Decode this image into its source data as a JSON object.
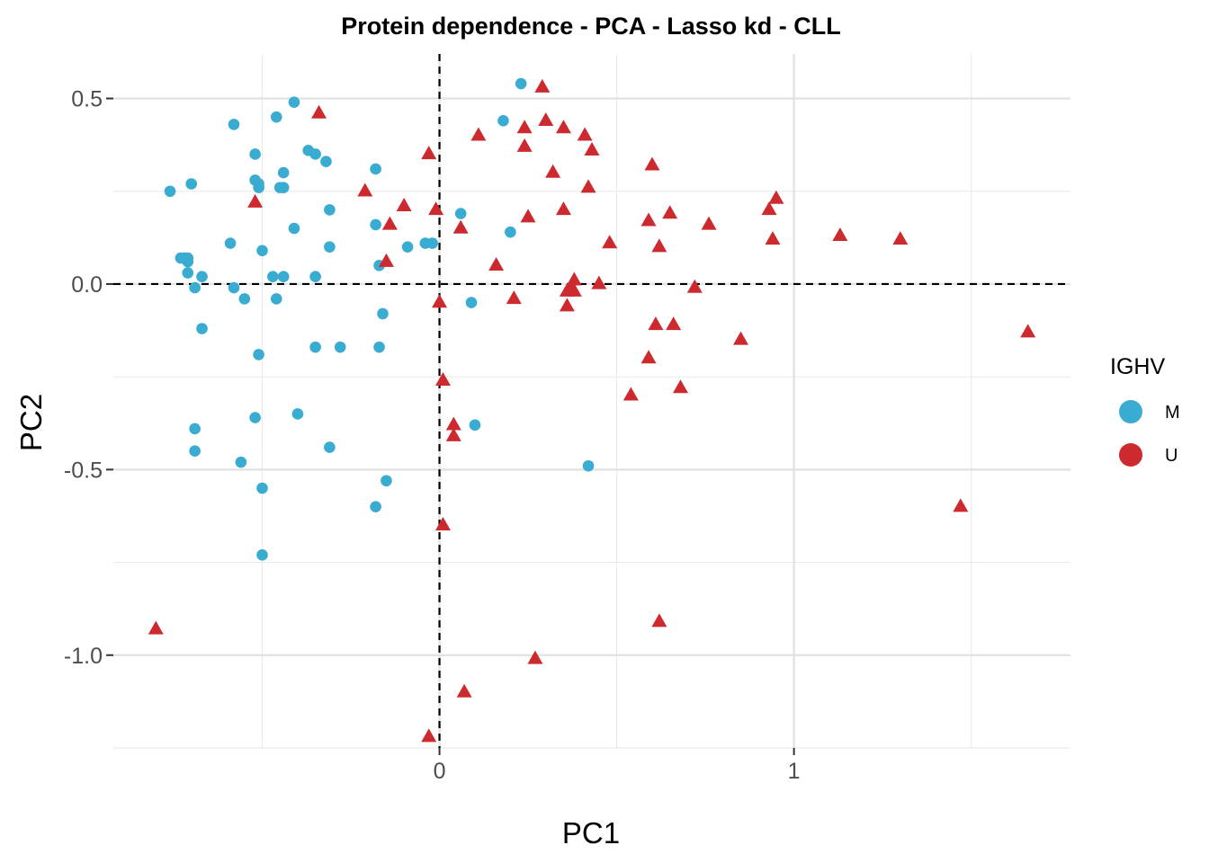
{
  "chart_data": {
    "type": "scatter",
    "title": "Protein dependence - PCA - Lasso kd - CLL",
    "xlabel": "PC1",
    "ylabel": "PC2",
    "xlim": [
      -0.92,
      1.78
    ],
    "ylim": [
      -1.25,
      0.62
    ],
    "x_ticks": [
      0,
      1
    ],
    "x_tick_labels": [
      "0",
      "1"
    ],
    "y_ticks": [
      0.5,
      0.0,
      -0.5,
      -1.0
    ],
    "y_tick_labels": [
      "0.5",
      "0.0",
      "-0.5",
      "-1.0"
    ],
    "x_minor_grid": [
      -0.5,
      0.5,
      1.5
    ],
    "y_minor_grid": [
      0.25,
      -0.25,
      -0.75,
      -1.25
    ],
    "grid": true,
    "reference_lines": {
      "x": 0,
      "y": 0,
      "style": "dashed"
    },
    "legend": {
      "title": "IGHV",
      "position": "right",
      "entries": [
        {
          "label": "M",
          "color": "#3AACD2"
        },
        {
          "label": "U",
          "color": "#CC2A2E"
        }
      ]
    },
    "series": [
      {
        "name": "M",
        "color": "#3AACD2",
        "shape": "circle",
        "points": [
          [
            -0.76,
            0.25
          ],
          [
            -0.58,
            0.43
          ],
          [
            -0.41,
            0.49
          ],
          [
            -0.46,
            0.45
          ],
          [
            -0.52,
            0.35
          ],
          [
            -0.37,
            0.36
          ],
          [
            -0.35,
            0.35
          ],
          [
            -0.32,
            0.33
          ],
          [
            -0.44,
            0.3
          ],
          [
            -0.7,
            0.27
          ],
          [
            -0.52,
            0.28
          ],
          [
            -0.51,
            0.27
          ],
          [
            -0.51,
            0.26
          ],
          [
            -0.44,
            0.26
          ],
          [
            -0.45,
            0.26
          ],
          [
            -0.31,
            0.2
          ],
          [
            -0.41,
            0.15
          ],
          [
            -0.59,
            0.11
          ],
          [
            -0.5,
            0.09
          ],
          [
            -0.31,
            0.1
          ],
          [
            -0.72,
            0.07
          ],
          [
            -0.73,
            0.07
          ],
          [
            -0.71,
            0.07
          ],
          [
            -0.71,
            0.06
          ],
          [
            -0.71,
            0.03
          ],
          [
            -0.67,
            0.02
          ],
          [
            -0.47,
            0.02
          ],
          [
            -0.44,
            0.02
          ],
          [
            -0.35,
            0.02
          ],
          [
            -0.69,
            -0.01
          ],
          [
            -0.58,
            -0.01
          ],
          [
            -0.46,
            -0.04
          ],
          [
            -0.55,
            -0.04
          ],
          [
            -0.67,
            -0.12
          ],
          [
            -0.35,
            -0.17
          ],
          [
            -0.28,
            -0.17
          ],
          [
            -0.17,
            -0.17
          ],
          [
            -0.51,
            -0.19
          ],
          [
            -0.16,
            -0.08
          ],
          [
            -0.18,
            0.31
          ],
          [
            -0.18,
            0.16
          ],
          [
            -0.17,
            0.05
          ],
          [
            -0.09,
            0.1
          ],
          [
            -0.04,
            0.11
          ],
          [
            -0.02,
            0.11
          ],
          [
            0.06,
            0.19
          ],
          [
            0.09,
            -0.05
          ],
          [
            0.2,
            0.14
          ],
          [
            0.18,
            0.44
          ],
          [
            0.23,
            0.54
          ],
          [
            -0.69,
            -0.39
          ],
          [
            -0.69,
            -0.45
          ],
          [
            -0.56,
            -0.48
          ],
          [
            -0.52,
            -0.36
          ],
          [
            -0.4,
            -0.35
          ],
          [
            -0.31,
            -0.44
          ],
          [
            -0.15,
            -0.53
          ],
          [
            -0.5,
            -0.55
          ],
          [
            -0.18,
            -0.6
          ],
          [
            -0.5,
            -0.73
          ],
          [
            0.1,
            -0.38
          ],
          [
            0.42,
            -0.49
          ]
        ]
      },
      {
        "name": "U",
        "color": "#CC2A2E",
        "shape": "triangle",
        "points": [
          [
            -0.34,
            0.46
          ],
          [
            -0.52,
            0.22
          ],
          [
            -0.21,
            0.25
          ],
          [
            -0.1,
            0.21
          ],
          [
            -0.14,
            0.16
          ],
          [
            -0.15,
            0.06
          ],
          [
            -0.03,
            0.35
          ],
          [
            -0.01,
            0.2
          ],
          [
            0.06,
            0.15
          ],
          [
            0.11,
            0.4
          ],
          [
            0.0,
            -0.05
          ],
          [
            0.16,
            0.05
          ],
          [
            0.21,
            -0.04
          ],
          [
            0.24,
            0.42
          ],
          [
            0.24,
            0.37
          ],
          [
            0.25,
            0.18
          ],
          [
            0.29,
            0.53
          ],
          [
            0.3,
            0.44
          ],
          [
            0.32,
            0.3
          ],
          [
            0.35,
            0.42
          ],
          [
            0.35,
            0.2
          ],
          [
            0.41,
            0.4
          ],
          [
            0.42,
            0.26
          ],
          [
            0.43,
            0.36
          ],
          [
            0.45,
            0.0
          ],
          [
            0.48,
            0.11
          ],
          [
            0.36,
            -0.02
          ],
          [
            0.37,
            -0.01
          ],
          [
            0.38,
            -0.02
          ],
          [
            0.36,
            -0.06
          ],
          [
            0.38,
            0.01
          ],
          [
            0.6,
            0.32
          ],
          [
            0.59,
            0.17
          ],
          [
            0.62,
            0.1
          ],
          [
            0.65,
            0.19
          ],
          [
            0.76,
            0.16
          ],
          [
            0.72,
            -0.01
          ],
          [
            0.61,
            -0.11
          ],
          [
            0.66,
            -0.11
          ],
          [
            0.59,
            -0.2
          ],
          [
            0.54,
            -0.3
          ],
          [
            0.68,
            -0.28
          ],
          [
            0.85,
            -0.15
          ],
          [
            0.93,
            0.2
          ],
          [
            0.95,
            0.23
          ],
          [
            0.94,
            0.12
          ],
          [
            1.13,
            0.13
          ],
          [
            1.3,
            0.12
          ],
          [
            1.66,
            -0.13
          ],
          [
            1.47,
            -0.6
          ],
          [
            0.62,
            -0.91
          ],
          [
            0.27,
            -1.01
          ],
          [
            0.07,
            -1.1
          ],
          [
            -0.03,
            -1.22
          ],
          [
            -0.8,
            -0.93
          ],
          [
            0.01,
            -0.26
          ],
          [
            0.04,
            -0.38
          ],
          [
            0.04,
            -0.41
          ],
          [
            0.01,
            -0.65
          ]
        ]
      }
    ]
  }
}
